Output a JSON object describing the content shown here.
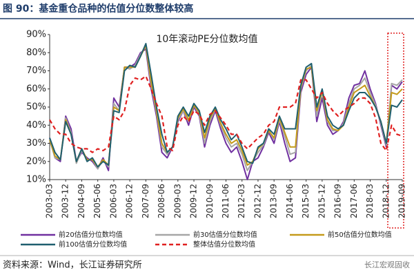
{
  "title": "图 90：基金重仓品种的估值分位数整体较高",
  "source": "资料来源：Wind，长江证券研究所",
  "watermark": "长江宏观固收",
  "chart_data": {
    "type": "line",
    "title": "10年滚动PE分位数均值",
    "categories": [
      "2003-03",
      null,
      null,
      "2003-12",
      null,
      null,
      "2004-09",
      null,
      null,
      "2005-06",
      null,
      null,
      "2006-03",
      null,
      null,
      "2006-12",
      null,
      null,
      "2007-09",
      null,
      null,
      "2008-06",
      null,
      null,
      "2009-03",
      null,
      null,
      "2009-12",
      null,
      null,
      "2010-09",
      null,
      null,
      "2011-06",
      null,
      null,
      "2012-03",
      null,
      null,
      "2012-12",
      null,
      null,
      "2013-09",
      null,
      null,
      "2014-06",
      null,
      null,
      "2015-03",
      null,
      null,
      "2015-12",
      null,
      null,
      "2016-09",
      null,
      null,
      "2017-06",
      null,
      null,
      "2018-03",
      null,
      null,
      "2018-12",
      null,
      null,
      "2019-09"
    ],
    "ylim": [
      10,
      90
    ],
    "yticks": [
      {
        "value": 10,
        "label": "10%"
      },
      {
        "value": 20,
        "label": "20%"
      },
      {
        "value": 30,
        "label": "30%"
      },
      {
        "value": 40,
        "label": "40%"
      },
      {
        "value": 50,
        "label": "50%"
      },
      {
        "value": 60,
        "label": "60%"
      },
      {
        "value": 70,
        "label": "70%"
      },
      {
        "value": 80,
        "label": "80%"
      },
      {
        "value": 90,
        "label": "90%"
      }
    ],
    "grid": false,
    "series": [
      {
        "name": "前20估值分位数均值",
        "color": "#7030a0",
        "dash": false,
        "values": [
          33,
          22,
          20,
          45,
          38,
          20,
          25,
          22,
          20,
          16,
          22,
          15,
          55,
          50,
          72,
          72,
          74,
          80,
          82,
          60,
          45,
          25,
          22,
          28,
          42,
          48,
          40,
          50,
          45,
          28,
          40,
          48,
          38,
          30,
          25,
          28,
          20,
          10,
          20,
          22,
          28,
          36,
          30,
          42,
          30,
          20,
          22,
          58,
          68,
          72,
          42,
          55,
          40,
          35,
          37,
          42,
          55,
          62,
          63,
          70,
          60,
          52,
          40,
          28,
          62,
          60,
          64
        ]
      },
      {
        "name": "前30估值分位数均值",
        "color": "#a6a6a6",
        "dash": false,
        "values": [
          32,
          22,
          21,
          44,
          36,
          19,
          26,
          21,
          21,
          16,
          21,
          17,
          52,
          48,
          72,
          71,
          73,
          79,
          84,
          62,
          47,
          28,
          24,
          28,
          43,
          48,
          42,
          51,
          46,
          30,
          42,
          49,
          40,
          33,
          28,
          30,
          24,
          15,
          20,
          25,
          29,
          37,
          32,
          43,
          34,
          24,
          25,
          60,
          70,
          73,
          45,
          58,
          42,
          37,
          37,
          41,
          52,
          60,
          62,
          66,
          58,
          51,
          41,
          29,
          63,
          62,
          65
        ]
      },
      {
        "name": "前50估值分位数均值",
        "color": "#c49a1a",
        "dash": false,
        "values": [
          32,
          23,
          21,
          43,
          35,
          20,
          27,
          21,
          21,
          17,
          21,
          18,
          50,
          48,
          72,
          72,
          72,
          78,
          84,
          64,
          48,
          30,
          25,
          28,
          44,
          49,
          43,
          51,
          47,
          33,
          44,
          49,
          41,
          35,
          30,
          32,
          26,
          18,
          20,
          27,
          30,
          37,
          33,
          44,
          36,
          28,
          28,
          61,
          71,
          72,
          48,
          59,
          43,
          38,
          37,
          40,
          50,
          58,
          60,
          62,
          56,
          50,
          42,
          30,
          58,
          57,
          60
        ]
      },
      {
        "name": "前100估值分位数均值",
        "color": "#1f5f6f",
        "dash": false,
        "values": [
          33,
          25,
          21,
          42,
          35,
          20,
          27,
          20,
          22,
          17,
          20,
          18,
          48,
          47,
          70,
          73,
          72,
          78,
          85,
          68,
          50,
          35,
          25,
          28,
          45,
          50,
          45,
          52,
          48,
          36,
          45,
          50,
          43,
          38,
          32,
          35,
          28,
          20,
          19,
          28,
          30,
          38,
          35,
          45,
          38,
          38,
          38,
          62,
          72,
          74,
          50,
          60,
          45,
          40,
          38,
          40,
          48,
          55,
          58,
          58,
          55,
          50,
          42,
          30,
          51,
          50,
          54
        ]
      },
      {
        "name": "整体估值分位数均值",
        "color": "#e02020",
        "dash": true,
        "values": [
          43,
          38,
          35,
          35,
          30,
          28,
          27,
          27,
          25,
          27,
          26,
          28,
          45,
          43,
          48,
          62,
          66,
          65,
          67,
          60,
          52,
          45,
          28,
          26,
          40,
          45,
          42,
          48,
          46,
          40,
          46,
          48,
          44,
          40,
          35,
          35,
          30,
          27,
          30,
          33,
          35,
          40,
          42,
          50,
          50,
          50,
          52,
          65,
          65,
          60,
          55,
          58,
          52,
          48,
          45,
          48,
          50,
          52,
          55,
          55,
          52,
          44,
          30,
          26,
          40,
          35,
          34
        ]
      }
    ]
  }
}
